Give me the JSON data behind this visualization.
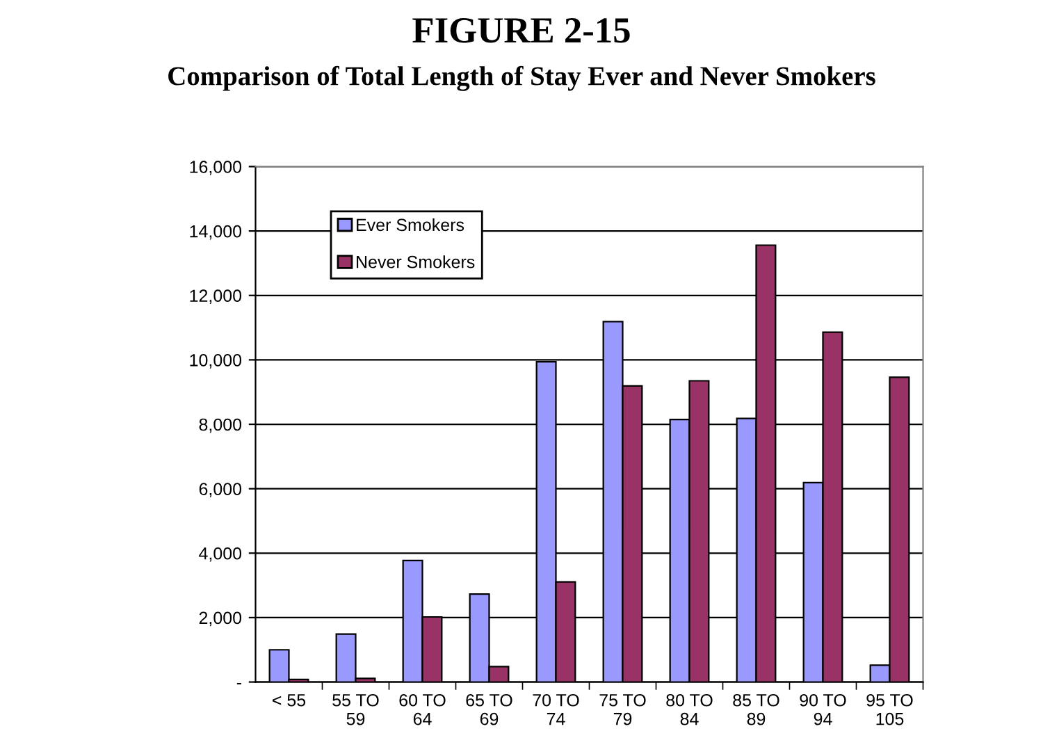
{
  "chart_data": {
    "type": "bar",
    "title": "FIGURE 2-15",
    "subtitle": "Comparison of Total Length of Stay Ever and Never Smokers",
    "categories": [
      "< 55",
      "55 TO\n59",
      "60 TO\n64",
      "65 TO\n69",
      "70 TO\n74",
      "75 TO\n79",
      "80 TO\n84",
      "85 TO\n89",
      "90 TO\n94",
      "95 TO\n105"
    ],
    "series": [
      {
        "name": "Ever Smokers",
        "color": "#9999ff",
        "values": [
          1000,
          1490,
          3770,
          2730,
          9940,
          11190,
          8150,
          8180,
          6190,
          520
        ]
      },
      {
        "name": "Never Smokers",
        "color": "#993366",
        "values": [
          80,
          110,
          2020,
          480,
          3110,
          9190,
          9350,
          13560,
          10860,
          9460
        ]
      }
    ],
    "ylim": [
      0,
      16000
    ],
    "yticks": [
      {
        "value": 0,
        "label": "-"
      },
      {
        "value": 2000,
        "label": "2,000"
      },
      {
        "value": 4000,
        "label": "4,000"
      },
      {
        "value": 6000,
        "label": "6,000"
      },
      {
        "value": 8000,
        "label": "8,000"
      },
      {
        "value": 10000,
        "label": "10,000"
      },
      {
        "value": 12000,
        "label": "12,000"
      },
      {
        "value": 14000,
        "label": "14,000"
      },
      {
        "value": 16000,
        "label": "16,000"
      }
    ],
    "grid": "y",
    "legend": "top left"
  }
}
